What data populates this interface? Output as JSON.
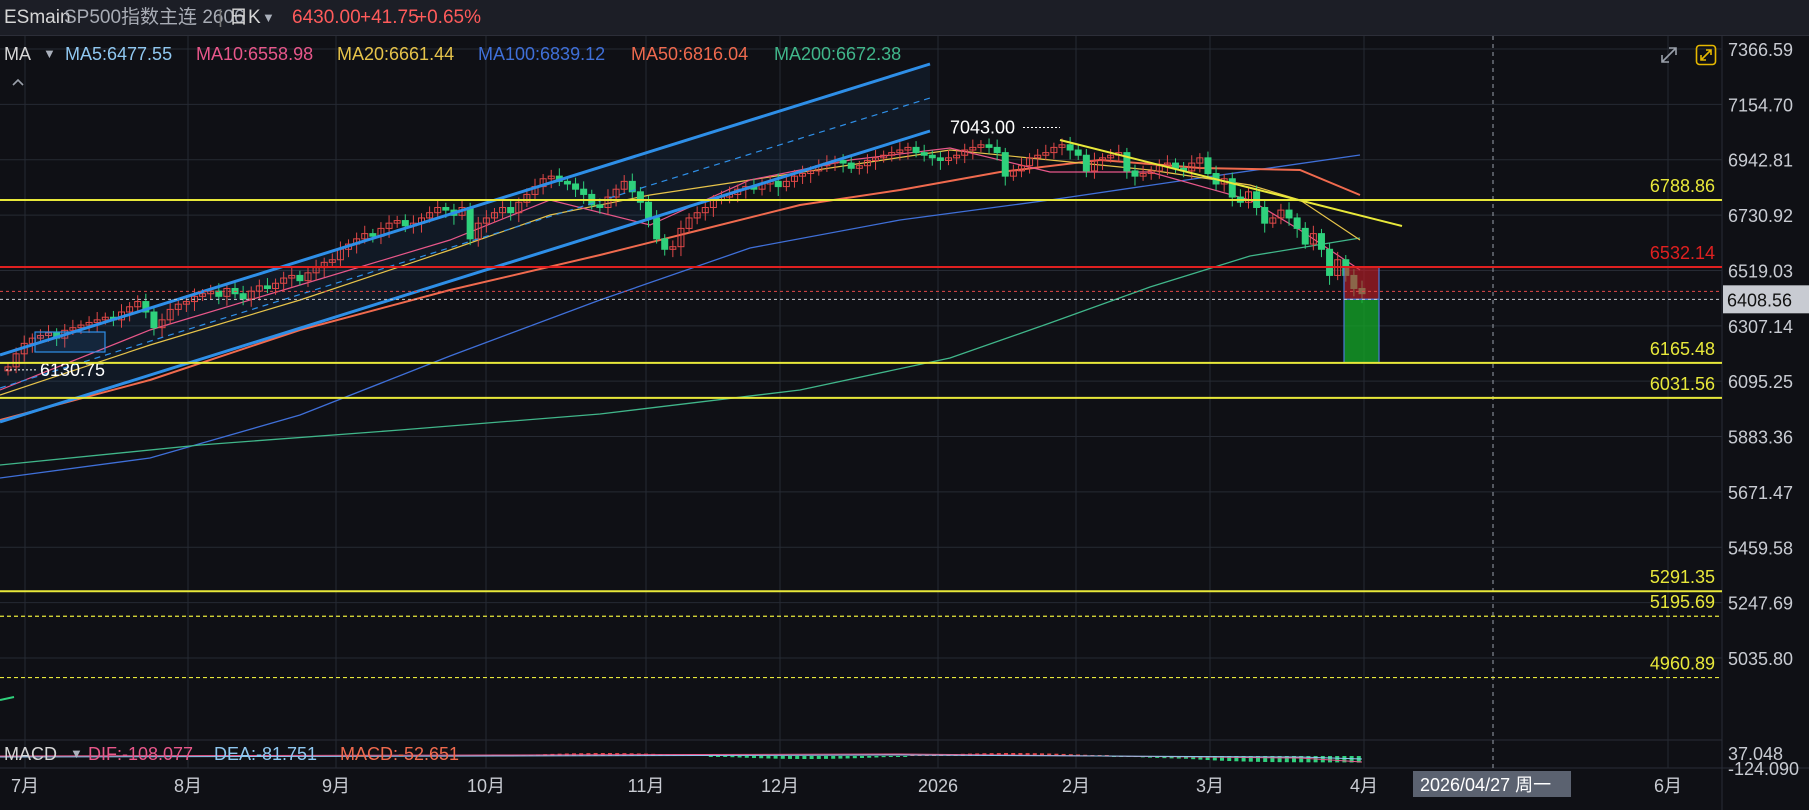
{
  "header": {
    "symbol": "ESmain",
    "name": "SP500指数主连 2606",
    "separator": "|",
    "period": "日K",
    "price": "6430.00",
    "change": "+41.75",
    "change_pct": "+0.65%"
  },
  "ma_legend": {
    "label": "MA",
    "items": [
      {
        "text": "MA5:6477.55",
        "color": "#8fc7f0"
      },
      {
        "text": "MA10:6558.98",
        "color": "#e8578a"
      },
      {
        "text": "MA20:6661.44",
        "color": "#e6c34a"
      },
      {
        "text": "MA100:6839.12",
        "color": "#3f6fd8"
      },
      {
        "text": "MA50:6816.04",
        "color": "#f06a4e"
      },
      {
        "text": "MA200:6672.38",
        "color": "#40b68a"
      }
    ]
  },
  "macd_legend": {
    "label": "MACD",
    "dif": "DIF:-108.077",
    "dea": "DEA:-81.751",
    "macd": "MACD:-52.651"
  },
  "colors": {
    "up": "#e04848",
    "down": "#2fd17c",
    "horizontal_line": "#e8e83a",
    "resistance_red": "#e02020",
    "channel": "#2e8fe8",
    "grid": "#262a33"
  },
  "chart_data": {
    "type": "candlestick",
    "y_axis_ticks": [
      "7366.59",
      "7154.70",
      "6942.81",
      "6730.92",
      "6519.03",
      "6307.14",
      "6095.25",
      "5883.36",
      "5671.47",
      "5459.58",
      "5247.69",
      "5035.80"
    ],
    "macd_axis_ticks": [
      "37.048",
      "-124.090"
    ],
    "ylim": [
      4900,
      7400
    ],
    "x_axis_labels": [
      "7月",
      "8月",
      "9月",
      "10月",
      "11月",
      "12月",
      "2026",
      "2月",
      "3月",
      "4月",
      "6月"
    ],
    "crosshair_date": "2026/04/27 周一",
    "current_price_label": "6408.56",
    "horizontal_levels": [
      {
        "value": 6788.86,
        "label": "6788.86",
        "style": "solid",
        "color": "#e8e83a"
      },
      {
        "value": 6532.14,
        "label": "6532.14",
        "style": "solid",
        "color": "#e02020"
      },
      {
        "value": 6165.48,
        "label": "6165.48",
        "style": "solid",
        "color": "#e8e83a"
      },
      {
        "value": 6031.56,
        "label": "6031.56",
        "style": "solid",
        "color": "#e8e83a"
      },
      {
        "value": 5291.35,
        "label": "5291.35",
        "style": "solid",
        "color": "#e8e83a"
      },
      {
        "value": 5195.69,
        "label": "5195.69",
        "style": "dashed",
        "color": "#e8e83a"
      },
      {
        "value": 4960.89,
        "label": "4960.89",
        "style": "dashed",
        "color": "#e8e83a"
      }
    ],
    "annotations": [
      {
        "text": "7043.00",
        "value": 7043.0
      },
      {
        "text": "6130.75",
        "value": 6130.75
      }
    ],
    "closes": [
      6150,
      6200,
      6240,
      6260,
      6270,
      6280,
      6260,
      6290,
      6300,
      6310,
      6320,
      6330,
      6340,
      6330,
      6360,
      6380,
      6400,
      6360,
      6300,
      6330,
      6370,
      6390,
      6400,
      6420,
      6430,
      6440,
      6420,
      6450,
      6430,
      6410,
      6440,
      6460,
      6450,
      6470,
      6490,
      6500,
      6480,
      6510,
      6530,
      6550,
      6560,
      6600,
      6620,
      6640,
      6660,
      6650,
      6680,
      6700,
      6710,
      6690,
      6700,
      6720,
      6740,
      6760,
      6750,
      6730,
      6760,
      6640,
      6700,
      6720,
      6740,
      6760,
      6740,
      6780,
      6810,
      6840,
      6870,
      6880,
      6860,
      6850,
      6830,
      6810,
      6770,
      6760,
      6800,
      6830,
      6860,
      6820,
      6780,
      6720,
      6640,
      6600,
      6610,
      6680,
      6720,
      6740,
      6760,
      6790,
      6800,
      6810,
      6830,
      6840,
      6830,
      6850,
      6860,
      6840,
      6860,
      6880,
      6890,
      6900,
      6920,
      6930,
      6940,
      6930,
      6910,
      6920,
      6940,
      6950,
      6960,
      6970,
      6980,
      6990,
      6970,
      6960,
      6950,
      6940,
      6950,
      6960,
      6980,
      6990,
      7000,
      6990,
      6970,
      6880,
      6900,
      6920,
      6950,
      6960,
      6970,
      6990,
      7000,
      6980,
      6960,
      6900,
      6940,
      6950,
      6960,
      6970,
      6900,
      6880,
      6890,
      6900,
      6920,
      6930,
      6910,
      6900,
      6930,
      6950,
      6890,
      6850,
      6870,
      6800,
      6780,
      6820,
      6760,
      6700,
      6720,
      6750,
      6720,
      6680,
      6620,
      6660,
      6600,
      6500,
      6560,
      6500,
      6450,
      6430
    ]
  }
}
